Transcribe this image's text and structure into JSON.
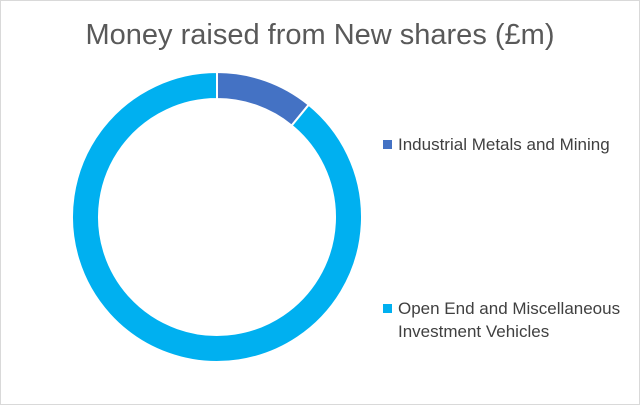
{
  "chart_data": {
    "type": "pie",
    "style": "donut",
    "title": "Money raised from New shares (£m)",
    "legend_position": "right",
    "series": [
      {
        "name": "Industrial Metals and Mining",
        "value": 10.9,
        "color": "#4472c4"
      },
      {
        "name": "Open End and Miscellaneous Investment Vehicles",
        "value": 89.1,
        "color": "#00b0f0"
      }
    ]
  }
}
